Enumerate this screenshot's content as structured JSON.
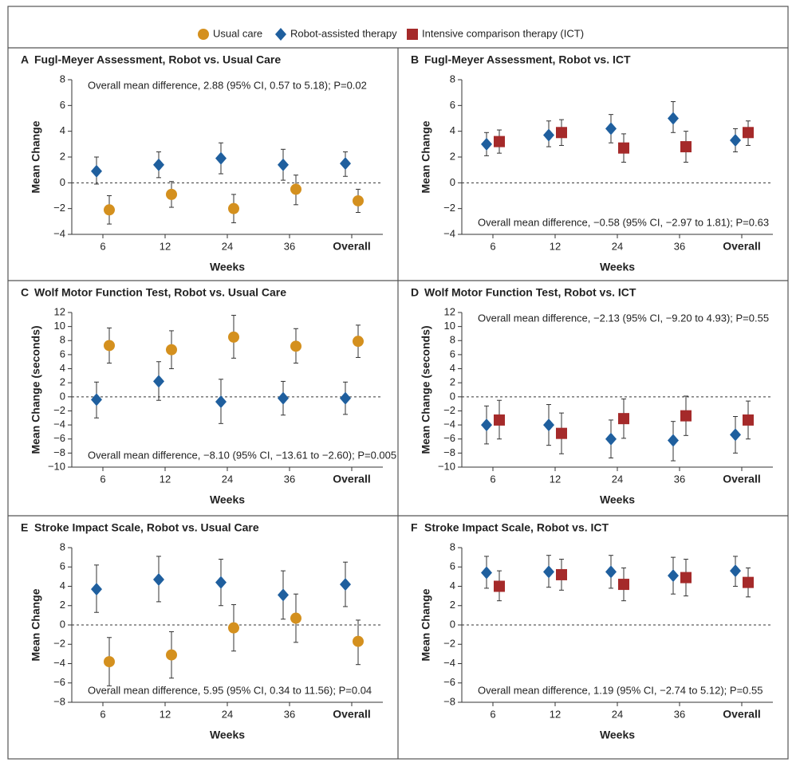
{
  "chart_data": [
    {
      "type": "errorbar",
      "label": "A",
      "title": "Fugl-Meyer Assessment, Robot vs. Usual Care",
      "ylabel": "Mean Change",
      "xlabel": "Weeks",
      "categories": [
        "6",
        "12",
        "24",
        "36",
        "Overall"
      ],
      "ylim": [
        -4,
        8
      ],
      "yticks": [
        {
          "value": -4,
          "label": "−4"
        },
        {
          "value": -2,
          "label": "−2"
        },
        0,
        2,
        4,
        6,
        8
      ],
      "reference_line": 0,
      "annotation": "Overall mean difference, 2.88 (95% CI, 0.57 to 5.18); P=0.02",
      "annotation_position": "top",
      "series": [
        {
          "name": "Robot-assisted therapy",
          "color": "#1f5f9e",
          "marker": "diamond",
          "values": [
            0.9,
            1.4,
            1.9,
            1.4,
            1.5
          ],
          "lower": [
            -0.1,
            0.4,
            0.7,
            0.2,
            0.5
          ],
          "upper": [
            2.0,
            2.4,
            3.1,
            2.6,
            2.4
          ]
        },
        {
          "name": "Usual care",
          "color": "#d4901e",
          "marker": "circle",
          "values": [
            -2.1,
            -0.9,
            -2.0,
            -0.5,
            -1.4
          ],
          "lower": [
            -3.2,
            -1.9,
            -3.1,
            -1.7,
            -2.3
          ],
          "upper": [
            -1.0,
            0.1,
            -0.9,
            0.6,
            -0.5
          ]
        }
      ]
    },
    {
      "type": "errorbar",
      "label": "B",
      "title": "Fugl-Meyer Assessment, Robot vs. ICT",
      "ylabel": "Mean Change",
      "xlabel": "Weeks",
      "categories": [
        "6",
        "12",
        "24",
        "36",
        "Overall"
      ],
      "ylim": [
        -4,
        8
      ],
      "yticks": [
        {
          "value": -4,
          "label": "−4"
        },
        {
          "value": -2,
          "label": "−2"
        },
        0,
        2,
        4,
        6,
        8
      ],
      "reference_line": 0,
      "annotation": "Overall mean difference, −0.58 (95% CI, −2.97 to 1.81); P=0.63",
      "annotation_position": "bottom",
      "series": [
        {
          "name": "Robot-assisted therapy",
          "color": "#1f5f9e",
          "marker": "diamond",
          "values": [
            3.0,
            3.7,
            4.2,
            5.0,
            3.3
          ],
          "lower": [
            2.1,
            2.8,
            3.1,
            3.9,
            2.4
          ],
          "upper": [
            3.9,
            4.8,
            5.3,
            6.3,
            4.2
          ]
        },
        {
          "name": "Intensive comparison therapy (ICT)",
          "color": "#a52a2a",
          "marker": "square",
          "values": [
            3.2,
            3.9,
            2.7,
            2.8,
            3.9
          ],
          "lower": [
            2.3,
            2.9,
            1.6,
            1.6,
            2.9
          ],
          "upper": [
            4.1,
            4.9,
            3.8,
            4.0,
            4.8
          ]
        }
      ]
    },
    {
      "type": "errorbar",
      "label": "C",
      "title": "Wolf Motor Function Test, Robot vs. Usual Care",
      "ylabel": "Mean Change (seconds)",
      "xlabel": "Weeks",
      "categories": [
        "6",
        "12",
        "24",
        "36",
        "Overall"
      ],
      "ylim": [
        -10,
        12
      ],
      "yticks": [
        {
          "value": -10,
          "label": "−10"
        },
        {
          "value": -8,
          "label": "−8"
        },
        {
          "value": -6,
          "label": "−6"
        },
        {
          "value": -4,
          "label": "−4"
        },
        {
          "value": -2,
          "label": "−2"
        },
        0,
        2,
        4,
        6,
        8,
        10,
        12
      ],
      "reference_line": 0,
      "annotation": "Overall mean difference, −8.10 (95% CI, −13.61 to −2.60); P=0.005",
      "annotation_position": "bottom",
      "series": [
        {
          "name": "Robot-assisted therapy",
          "color": "#1f5f9e",
          "marker": "diamond",
          "values": [
            -0.4,
            2.2,
            -0.7,
            -0.2,
            -0.2
          ],
          "lower": [
            -3.0,
            -0.5,
            -3.8,
            -2.6,
            -2.5
          ],
          "upper": [
            2.1,
            5.0,
            2.5,
            2.2,
            2.1
          ]
        },
        {
          "name": "Usual care",
          "color": "#d4901e",
          "marker": "circle",
          "values": [
            7.3,
            6.7,
            8.5,
            7.2,
            7.9
          ],
          "lower": [
            4.8,
            4.0,
            5.5,
            4.8,
            5.6
          ],
          "upper": [
            9.8,
            9.4,
            11.6,
            9.7,
            10.2
          ]
        }
      ]
    },
    {
      "type": "errorbar",
      "label": "D",
      "title": "Wolf Motor Function Test, Robot vs. ICT",
      "ylabel": "Mean Change (seconds)",
      "xlabel": "Weeks",
      "categories": [
        "6",
        "12",
        "24",
        "36",
        "Overall"
      ],
      "ylim": [
        -10,
        12
      ],
      "yticks": [
        {
          "value": -10,
          "label": "−10"
        },
        {
          "value": -8,
          "label": "−8"
        },
        {
          "value": -6,
          "label": "−6"
        },
        {
          "value": -4,
          "label": "−4"
        },
        {
          "value": -2,
          "label": "−2"
        },
        0,
        2,
        4,
        6,
        8,
        10,
        12
      ],
      "reference_line": 0,
      "annotation": "Overall mean difference, −2.13 (95% CI, −9.20 to 4.93); P=0.55",
      "annotation_position": "top",
      "series": [
        {
          "name": "Robot-assisted therapy",
          "color": "#1f5f9e",
          "marker": "diamond",
          "values": [
            -4.0,
            -4.0,
            -6.0,
            -6.2,
            -5.4
          ],
          "lower": [
            -6.7,
            -6.9,
            -8.7,
            -9.1,
            -8.0
          ],
          "upper": [
            -1.3,
            -1.1,
            -3.3,
            -3.5,
            -2.8
          ]
        },
        {
          "name": "Intensive comparison therapy (ICT)",
          "color": "#a52a2a",
          "marker": "square",
          "values": [
            -3.3,
            -5.2,
            -3.1,
            -2.7,
            -3.3
          ],
          "lower": [
            -6.0,
            -8.1,
            -5.9,
            -5.5,
            -6.0
          ],
          "upper": [
            -0.5,
            -2.3,
            -0.3,
            0.1,
            -0.6
          ]
        }
      ]
    },
    {
      "type": "errorbar",
      "label": "E",
      "title": "Stroke Impact Scale, Robot vs. Usual Care",
      "ylabel": "Mean Change",
      "xlabel": "Weeks",
      "categories": [
        "6",
        "12",
        "24",
        "36",
        "Overall"
      ],
      "ylim": [
        -8,
        8
      ],
      "yticks": [
        {
          "value": -8,
          "label": "−8"
        },
        {
          "value": -6,
          "label": "−6"
        },
        {
          "value": -4,
          "label": "−4"
        },
        {
          "value": -2,
          "label": "−2"
        },
        0,
        2,
        4,
        6,
        8
      ],
      "reference_line": 0,
      "annotation": "Overall mean difference, 5.95 (95% CI, 0.34 to 11.56); P=0.04",
      "annotation_position": "bottom",
      "series": [
        {
          "name": "Robot-assisted therapy",
          "color": "#1f5f9e",
          "marker": "diamond",
          "values": [
            3.7,
            4.7,
            4.4,
            3.1,
            4.2
          ],
          "lower": [
            1.3,
            2.4,
            2.0,
            0.6,
            1.9
          ],
          "upper": [
            6.2,
            7.1,
            6.8,
            5.6,
            6.5
          ]
        },
        {
          "name": "Usual care",
          "color": "#d4901e",
          "marker": "circle",
          "values": [
            -3.8,
            -3.1,
            -0.3,
            0.7,
            -1.7
          ],
          "lower": [
            -6.3,
            -5.5,
            -2.7,
            -1.8,
            -4.1
          ],
          "upper": [
            -1.3,
            -0.7,
            2.1,
            3.2,
            0.5
          ]
        }
      ]
    },
    {
      "type": "errorbar",
      "label": "F",
      "title": "Stroke Impact Scale, Robot vs. ICT",
      "ylabel": "Mean Change",
      "xlabel": "Weeks",
      "categories": [
        "6",
        "12",
        "24",
        "36",
        "Overall"
      ],
      "ylim": [
        -8,
        8
      ],
      "yticks": [
        {
          "value": -8,
          "label": "−8"
        },
        {
          "value": -6,
          "label": "−6"
        },
        {
          "value": -4,
          "label": "−4"
        },
        {
          "value": -2,
          "label": "−2"
        },
        0,
        2,
        4,
        6,
        8
      ],
      "reference_line": 0,
      "annotation": "Overall mean difference, 1.19 (95% CI, −2.74 to 5.12); P=0.55",
      "annotation_position": "bottom",
      "series": [
        {
          "name": "Robot-assisted therapy",
          "color": "#1f5f9e",
          "marker": "diamond",
          "values": [
            5.4,
            5.5,
            5.5,
            5.1,
            5.6
          ],
          "lower": [
            3.8,
            3.9,
            3.8,
            3.2,
            4.0
          ],
          "upper": [
            7.1,
            7.2,
            7.2,
            7.0,
            7.1
          ]
        },
        {
          "name": "Intensive comparison therapy (ICT)",
          "color": "#a52a2a",
          "marker": "square",
          "values": [
            4.0,
            5.2,
            4.2,
            4.9,
            4.4
          ],
          "lower": [
            2.5,
            3.6,
            2.5,
            3.0,
            2.9
          ],
          "upper": [
            5.6,
            6.8,
            5.9,
            6.8,
            5.9
          ]
        }
      ]
    }
  ]
}
